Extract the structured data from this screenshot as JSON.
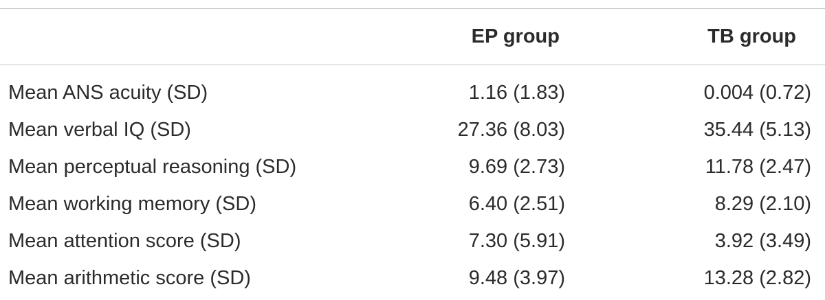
{
  "table": {
    "columns": [
      "EP group",
      "TB group"
    ],
    "rows": [
      [
        "Mean ANS acuity (SD)",
        "1.16 (1.83)",
        "0.004 (0.72)"
      ],
      [
        "Mean verbal IQ (SD)",
        "27.36 (8.03)",
        "35.44 (5.13)"
      ],
      [
        "Mean perceptual reasoning (SD)",
        "9.69 (2.73)",
        "11.78 (2.47)"
      ],
      [
        "Mean working memory (SD)",
        "6.40 (2.51)",
        "8.29 (2.10)"
      ],
      [
        "Mean attention score (SD)",
        "7.30 (5.91)",
        "3.92 (3.49)"
      ],
      [
        "Mean arithmetic score (SD)",
        "9.48 (3.97)",
        "13.28 (2.82)"
      ]
    ]
  }
}
